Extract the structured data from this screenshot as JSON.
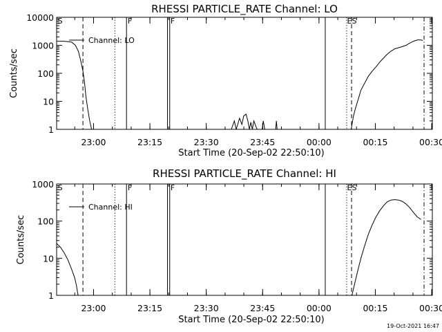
{
  "footer": {
    "timestamp": "19-Oct-2021 16:47"
  },
  "chart_data": [
    {
      "type": "line",
      "title": "RHESSI PARTICLE_RATE Channel: LO",
      "xlabel": "Start Time (20-Sep-02 22:50:10)",
      "ylabel": "Counts/sec",
      "x_unit": "minutes after 22:50:10",
      "xlim": [
        0,
        100
      ],
      "ylim": [
        1,
        10000
      ],
      "yscale": "log",
      "grid": false,
      "legend_position": "top-left",
      "x_ticks": [
        {
          "x": 9.83,
          "label": "23:00"
        },
        {
          "x": 24.83,
          "label": "23:15"
        },
        {
          "x": 39.83,
          "label": "23:30"
        },
        {
          "x": 54.83,
          "label": "23:45"
        },
        {
          "x": 69.83,
          "label": "00:00"
        },
        {
          "x": 84.83,
          "label": "00:15"
        },
        {
          "x": 99.83,
          "label": "00:30"
        }
      ],
      "y_ticks": [
        {
          "y": 1,
          "label": "1"
        },
        {
          "y": 10,
          "label": "10"
        },
        {
          "y": 100,
          "label": "100"
        },
        {
          "y": 1000,
          "label": "1000"
        },
        {
          "y": 10000,
          "label": "10000"
        }
      ],
      "series": [
        {
          "name": "Channel: LO",
          "segments": [
            [
              [
                0,
                1400
              ],
              [
                2,
                1400
              ],
              [
                4,
                1300
              ],
              [
                5,
                1000
              ],
              [
                5.8,
                600
              ],
              [
                6.5,
                250
              ],
              [
                7,
                120
              ],
              [
                7.4,
                50
              ],
              [
                7.8,
                15
              ],
              [
                8.3,
                5
              ],
              [
                8.8,
                2
              ],
              [
                9.3,
                1
              ]
            ],
            [
              [
                46.5,
                1
              ],
              [
                47.3,
                2
              ],
              [
                47.8,
                1
              ],
              [
                48.2,
                1.5
              ],
              [
                48.7,
                2.5
              ],
              [
                49.3,
                1.5
              ],
              [
                49.8,
                3
              ],
              [
                50.4,
                3.5
              ],
              [
                50.9,
                2
              ],
              [
                51.3,
                1
              ],
              [
                51.7,
                1.8
              ],
              [
                52.1,
                1
              ],
              [
                52.5,
                2
              ],
              [
                53.1,
                1.2
              ],
              [
                53.4,
                1
              ],
              [
                54.7,
                1
              ],
              [
                55,
                2
              ],
              [
                55.4,
                1
              ],
              [
                58.3,
                1
              ],
              [
                58.5,
                2
              ],
              [
                58.7,
                1
              ]
            ],
            [
              [
                78.4,
                1
              ],
              [
                79,
                3
              ],
              [
                79.6,
                6
              ],
              [
                80.3,
                12
              ],
              [
                81,
                25
              ],
              [
                82,
                45
              ],
              [
                83,
                80
              ],
              [
                84,
                120
              ],
              [
                85,
                170
              ],
              [
                86,
                250
              ],
              [
                87,
                350
              ],
              [
                88,
                480
              ],
              [
                89,
                620
              ],
              [
                90,
                750
              ],
              [
                91,
                820
              ],
              [
                92,
                900
              ],
              [
                93,
                1000
              ],
              [
                94,
                1200
              ],
              [
                95,
                1400
              ],
              [
                96,
                1550
              ],
              [
                96.8,
                1550
              ],
              [
                97.5,
                1500
              ]
            ]
          ]
        }
      ],
      "vlines": [
        {
          "x": 7,
          "style": "dashed"
        },
        {
          "x": 15.5,
          "style": "dotted"
        },
        {
          "x": 18.6,
          "style": "solid",
          "flag": "F"
        },
        {
          "x": 29.5,
          "style": "solid",
          "flag": "F"
        },
        {
          "x": 30.1,
          "style": "solid"
        },
        {
          "x": 71.5,
          "style": "solid"
        },
        {
          "x": 77.2,
          "style": "dotted"
        },
        {
          "x": 78.5,
          "style": "dashed"
        },
        {
          "x": 97.8,
          "style": "dashdot"
        }
      ],
      "flag_labels": [
        {
          "x": 0.3,
          "text": "S"
        },
        {
          "x": 18.9,
          "text": "F"
        },
        {
          "x": 30.3,
          "text": "F"
        },
        {
          "x": 77.3,
          "text": "ES"
        }
      ]
    },
    {
      "type": "line",
      "title": "RHESSI PARTICLE_RATE Channel: HI",
      "xlabel": "Start Time (20-Sep-02 22:50:10)",
      "ylabel": "Counts/sec",
      "x_unit": "minutes after 22:50:10",
      "xlim": [
        0,
        100
      ],
      "ylim": [
        1,
        1000
      ],
      "yscale": "log",
      "grid": false,
      "legend_position": "top-left",
      "x_ticks": [
        {
          "x": 9.83,
          "label": "23:00"
        },
        {
          "x": 24.83,
          "label": "23:15"
        },
        {
          "x": 39.83,
          "label": "23:30"
        },
        {
          "x": 54.83,
          "label": "23:45"
        },
        {
          "x": 69.83,
          "label": "00:00"
        },
        {
          "x": 84.83,
          "label": "00:15"
        },
        {
          "x": 99.83,
          "label": "00:30"
        }
      ],
      "y_ticks": [
        {
          "y": 1,
          "label": "1"
        },
        {
          "y": 10,
          "label": "10"
        },
        {
          "y": 100,
          "label": "100"
        },
        {
          "y": 1000,
          "label": "1000"
        }
      ],
      "series": [
        {
          "name": "Channel: HI",
          "segments": [
            [
              [
                0,
                25
              ],
              [
                1,
                20
              ],
              [
                2,
                14
              ],
              [
                3,
                9
              ],
              [
                4,
                5
              ],
              [
                4.8,
                3
              ],
              [
                5.3,
                1.8
              ],
              [
                5.7,
                1
              ]
            ],
            [
              [
                78.6,
                1
              ],
              [
                79.3,
                2
              ],
              [
                80,
                4
              ],
              [
                81,
                10
              ],
              [
                82,
                22
              ],
              [
                83,
                45
              ],
              [
                84,
                80
              ],
              [
                85,
                130
              ],
              [
                86,
                190
              ],
              [
                87,
                260
              ],
              [
                88,
                330
              ],
              [
                89,
                370
              ],
              [
                90,
                380
              ],
              [
                91,
                370
              ],
              [
                92,
                340
              ],
              [
                93,
                290
              ],
              [
                94,
                230
              ],
              [
                95,
                170
              ],
              [
                96,
                130
              ],
              [
                97,
                110
              ]
            ]
          ]
        }
      ],
      "vlines": [
        {
          "x": 7,
          "style": "dashed"
        },
        {
          "x": 15.5,
          "style": "dotted"
        },
        {
          "x": 18.6,
          "style": "solid",
          "flag": "F"
        },
        {
          "x": 29.5,
          "style": "solid",
          "flag": "F"
        },
        {
          "x": 30.1,
          "style": "solid"
        },
        {
          "x": 71.5,
          "style": "solid"
        },
        {
          "x": 77.2,
          "style": "dotted"
        },
        {
          "x": 78.5,
          "style": "dashed"
        },
        {
          "x": 97.8,
          "style": "dashdot"
        }
      ],
      "flag_labels": [
        {
          "x": 0.3,
          "text": "S"
        },
        {
          "x": 18.9,
          "text": "F"
        },
        {
          "x": 30.3,
          "text": "F"
        },
        {
          "x": 77.3,
          "text": "ES"
        }
      ]
    }
  ]
}
